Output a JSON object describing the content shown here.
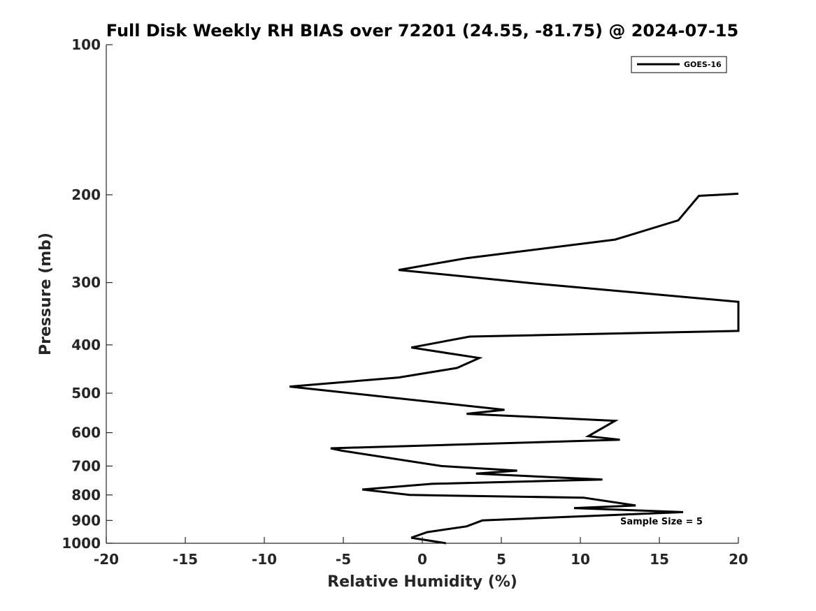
{
  "chart_data": {
    "type": "line",
    "title": "Full Disk Weekly RH BIAS over 72201 (24.55, -81.75) @ 2024-07-15",
    "xlabel": "Relative Humidity (%)",
    "ylabel": "Pressure (mb)",
    "xlim": [
      -20,
      20
    ],
    "ylim": [
      100,
      1000
    ],
    "y_scale": "log",
    "y_reversed": true,
    "x_ticks": [
      -20,
      -15,
      -10,
      -5,
      0,
      5,
      10,
      15,
      20
    ],
    "x_tick_labels": [
      "-20",
      "-15",
      "-10",
      "-5",
      "0",
      "5",
      "10",
      "15",
      "20"
    ],
    "y_ticks": [
      100,
      200,
      300,
      400,
      500,
      600,
      700,
      800,
      900,
      1000
    ],
    "y_tick_labels": [
      "100",
      "200",
      "300",
      "400",
      "500",
      "600",
      "700",
      "800",
      "900",
      "1000"
    ],
    "grid": false,
    "legend_position": "top-right",
    "annotation": "Sample Size = 5",
    "series": [
      {
        "name": "GOES-16",
        "color": "#000000",
        "points": [
          [
            1.5,
            1000
          ],
          [
            -0.7,
            975
          ],
          [
            0.3,
            950
          ],
          [
            2.8,
            925
          ],
          [
            3.8,
            900
          ],
          [
            16.5,
            866
          ],
          [
            9.6,
            850
          ],
          [
            13.5,
            840
          ],
          [
            10.2,
            810
          ],
          [
            -0.8,
            800
          ],
          [
            -3.8,
            780
          ],
          [
            0.6,
            760
          ],
          [
            11.4,
            745
          ],
          [
            3.4,
            725
          ],
          [
            6.0,
            715
          ],
          [
            1.2,
            700
          ],
          [
            -5.1,
            652
          ],
          [
            -5.8,
            645
          ],
          [
            12.5,
            620
          ],
          [
            10.5,
            610
          ],
          [
            12.2,
            568
          ],
          [
            2.8,
            550
          ],
          [
            5.2,
            540
          ],
          [
            -8.4,
            485
          ],
          [
            -1.5,
            465
          ],
          [
            2.2,
            445
          ],
          [
            3.6,
            425
          ],
          [
            -0.7,
            405
          ],
          [
            3.0,
            385
          ],
          [
            20.0,
            375
          ],
          [
            20.0,
            328
          ],
          [
            7.0,
            301
          ],
          [
            -1.5,
            283
          ],
          [
            2.8,
            268
          ],
          [
            12.2,
            246
          ],
          [
            16.2,
            225
          ],
          [
            17.5,
            201
          ],
          [
            20.0,
            199
          ]
        ]
      }
    ]
  }
}
